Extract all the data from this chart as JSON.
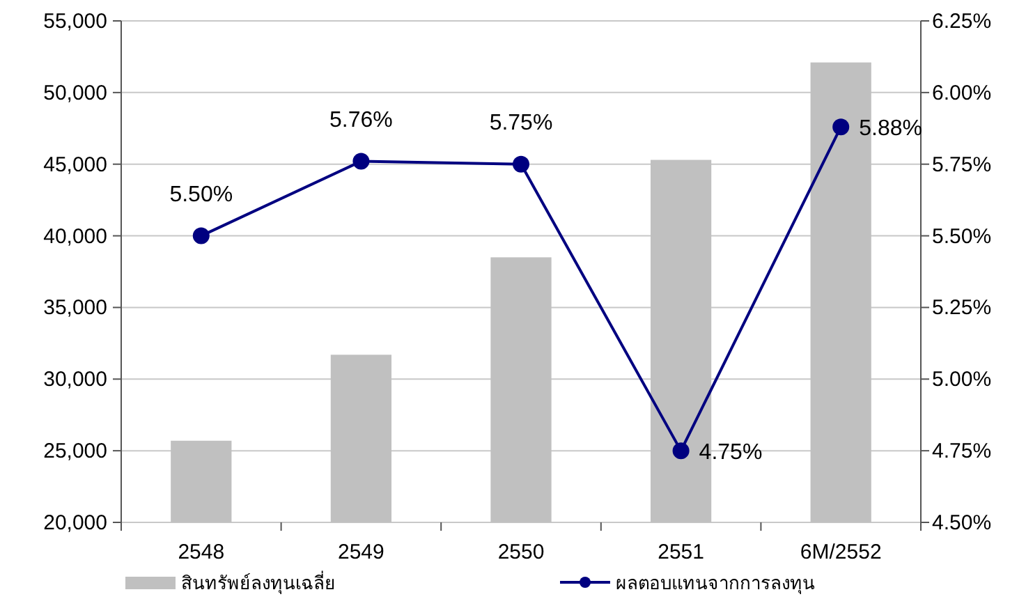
{
  "chart_data": {
    "type": "bar",
    "categories": [
      "2548",
      "2549",
      "2550",
      "2551",
      "6M/2552"
    ],
    "series": [
      {
        "name": "สินทรัพย์ลงทุนเฉลี่ย",
        "color": "#c0c0c0",
        "values": [
          25700,
          31700,
          38500,
          45300,
          52100
        ]
      },
      {
        "name": "ผลตอบแทนจากการลงทุน",
        "type": "line",
        "axis": "y2",
        "color": "#000080",
        "values": [
          5.5,
          5.76,
          5.75,
          4.75,
          5.88
        ],
        "value_labels": [
          "5.50%",
          "5.76%",
          "5.75%",
          "4.75%",
          "5.88%"
        ]
      }
    ],
    "ylim": [
      20000,
      55000
    ],
    "yticks": [
      {
        "value": 20000,
        "label": "20,000"
      },
      {
        "value": 25000,
        "label": "25,000"
      },
      {
        "value": 30000,
        "label": "30,000"
      },
      {
        "value": 35000,
        "label": "35,000"
      },
      {
        "value": 40000,
        "label": "40,000"
      },
      {
        "value": 45000,
        "label": "45,000"
      },
      {
        "value": 50000,
        "label": "50,000"
      },
      {
        "value": 55000,
        "label": "55,000"
      }
    ],
    "y2lim": [
      4.5,
      6.25
    ],
    "y2ticks": [
      {
        "value": 4.5,
        "label": "4.50%"
      },
      {
        "value": 4.75,
        "label": "4.75%"
      },
      {
        "value": 5.0,
        "label": "5.00%"
      },
      {
        "value": 5.25,
        "label": "5.25%"
      },
      {
        "value": 5.5,
        "label": "5.50%"
      },
      {
        "value": 5.75,
        "label": "5.75%"
      },
      {
        "value": 6.0,
        "label": "6.00%"
      },
      {
        "value": 6.25,
        "label": "6.25%"
      }
    ],
    "grid": "y",
    "legend": "bottom",
    "marker": "circle",
    "line_style": "solid"
  }
}
